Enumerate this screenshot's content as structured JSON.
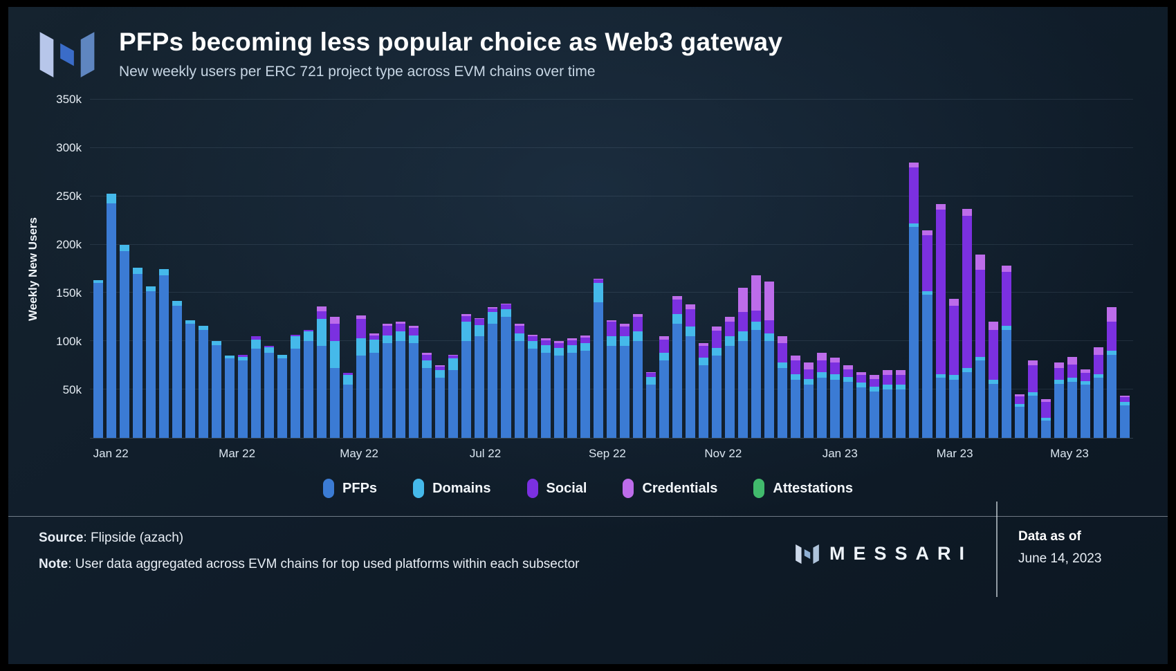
{
  "header": {
    "title": "PFPs becoming less popular choice as Web3 gateway",
    "subtitle": "New weekly users per ERC 721 project type across EVM chains over time"
  },
  "chart_data": {
    "type": "bar",
    "stacked": true,
    "title": "PFPs becoming less popular choice as Web3 gateway",
    "subtitle": "New weekly users per ERC 721 project type across EVM chains over time",
    "xlabel": "",
    "ylabel": "Weekly New Users",
    "values_unit": "thousands of weekly new users",
    "ylim": [
      0,
      350
    ],
    "grid": true,
    "legend_position": "bottom",
    "yticks": [
      "50k",
      "100k",
      "150k",
      "200k",
      "250k",
      "300k",
      "350k"
    ],
    "ytick_values": [
      50,
      100,
      150,
      200,
      250,
      300,
      350
    ],
    "x_ticks": [
      {
        "label": "Jan 22",
        "pos_pct": 2.0
      },
      {
        "label": "Mar 22",
        "pos_pct": 14.1
      },
      {
        "label": "May 22",
        "pos_pct": 25.8
      },
      {
        "label": "Jul 22",
        "pos_pct": 37.9
      },
      {
        "label": "Sep 22",
        "pos_pct": 49.6
      },
      {
        "label": "Nov 22",
        "pos_pct": 60.7
      },
      {
        "label": "Jan 23",
        "pos_pct": 71.9
      },
      {
        "label": "Mar 23",
        "pos_pct": 82.9
      },
      {
        "label": "May 23",
        "pos_pct": 93.9
      }
    ],
    "x_period": "weekly, Jan 2022 - Jun 2023",
    "series": [
      {
        "name": "PFPs",
        "color": "#3b7bd4",
        "values": [
          160,
          243,
          193,
          170,
          152,
          168,
          137,
          118,
          112,
          96,
          82,
          80,
          92,
          88,
          82,
          92,
          100,
          95,
          72,
          55,
          85,
          88,
          98,
          100,
          98,
          72,
          62,
          70,
          100,
          105,
          118,
          125,
          100,
          92,
          88,
          85,
          88,
          90,
          140,
          95,
          95,
          100,
          55,
          80,
          118,
          105,
          75,
          85,
          95,
          100,
          112,
          100,
          72,
          60,
          55,
          62,
          60,
          58,
          52,
          48,
          50,
          50,
          218,
          148,
          62,
          60,
          68,
          80,
          56,
          112,
          32,
          44,
          18,
          56,
          58,
          55,
          62,
          86,
          34
        ]
      },
      {
        "name": "Domains",
        "color": "#45b9ea",
        "values": [
          3,
          10,
          7,
          6,
          5,
          7,
          5,
          4,
          4,
          4,
          3,
          4,
          10,
          6,
          4,
          13,
          10,
          28,
          28,
          10,
          18,
          14,
          8,
          10,
          8,
          8,
          8,
          12,
          20,
          12,
          12,
          8,
          8,
          8,
          8,
          8,
          8,
          8,
          20,
          10,
          10,
          10,
          8,
          8,
          10,
          10,
          8,
          8,
          10,
          10,
          8,
          8,
          6,
          6,
          6,
          6,
          6,
          5,
          5,
          5,
          5,
          5,
          4,
          4,
          4,
          5,
          4,
          4,
          4,
          4,
          3,
          3,
          3,
          4,
          4,
          4,
          4,
          4,
          3
        ]
      },
      {
        "name": "Social",
        "color": "#7b30e0",
        "values": [
          0,
          0,
          0,
          0,
          0,
          0,
          0,
          0,
          0,
          0,
          0,
          2,
          3,
          1,
          0,
          2,
          2,
          8,
          18,
          2,
          20,
          4,
          10,
          8,
          8,
          6,
          4,
          3,
          6,
          6,
          4,
          5,
          8,
          5,
          5,
          5,
          5,
          6,
          4,
          15,
          10,
          15,
          4,
          14,
          15,
          18,
          12,
          18,
          15,
          20,
          12,
          14,
          20,
          14,
          10,
          12,
          12,
          8,
          8,
          8,
          10,
          10,
          58,
          58,
          170,
          72,
          158,
          90,
          52,
          56,
          8,
          28,
          16,
          12,
          14,
          8,
          20,
          30,
          5
        ]
      },
      {
        "name": "Credentials",
        "color": "#bd6cea",
        "values": [
          0,
          0,
          0,
          0,
          0,
          0,
          0,
          0,
          0,
          0,
          0,
          0,
          0,
          0,
          0,
          0,
          0,
          5,
          7,
          0,
          4,
          2,
          2,
          2,
          2,
          2,
          1,
          1,
          2,
          1,
          1,
          1,
          2,
          2,
          2,
          2,
          2,
          2,
          1,
          2,
          3,
          3,
          1,
          3,
          4,
          5,
          3,
          4,
          5,
          25,
          36,
          40,
          7,
          5,
          7,
          8,
          5,
          4,
          3,
          4,
          5,
          5,
          5,
          5,
          6,
          7,
          7,
          16,
          8,
          6,
          2,
          5,
          3,
          6,
          8,
          4,
          8,
          15,
          2
        ]
      },
      {
        "name": "Attestations",
        "color": "#41ba6c",
        "values": [
          0,
          0,
          0,
          0,
          0,
          0,
          0,
          0,
          0,
          0,
          0,
          0,
          0,
          0,
          0,
          0,
          0,
          0,
          0,
          0,
          0,
          0,
          0,
          0,
          0,
          0,
          0,
          0,
          0,
          0,
          0,
          0,
          0,
          0,
          0,
          0,
          0,
          0,
          0,
          0,
          0,
          0,
          0,
          0,
          0,
          0,
          0,
          0,
          0,
          0,
          0,
          0,
          0,
          0,
          0,
          0,
          0,
          0,
          0,
          0,
          0,
          0,
          0,
          0,
          0,
          0,
          0,
          0,
          0,
          0,
          0,
          0,
          0,
          0,
          0,
          0,
          0,
          0,
          0
        ]
      }
    ]
  },
  "footer": {
    "source_label": "Source",
    "source_value": ": Flipside (azach)",
    "note_label": "Note",
    "note_value": ": User data aggregated across EVM chains for top used platforms within each subsector",
    "brand": "MESSARI",
    "data_as_of_label": "Data as of",
    "data_as_of_date": "June 14, 2023"
  }
}
